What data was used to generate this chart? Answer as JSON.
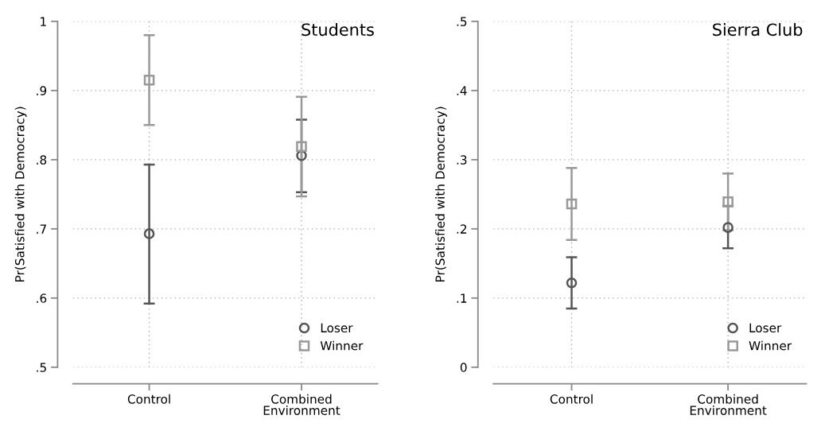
{
  "chart_data": [
    {
      "type": "scatter",
      "title": "Students",
      "ylabel": "Pr(Satisfied with Democracy)",
      "categories": [
        "Control",
        "Combined\nEnvironment"
      ],
      "ylim": [
        0.5,
        1
      ],
      "yticks": [
        {
          "value": 0.5,
          "label": ".5"
        },
        {
          "value": 0.6,
          "label": ".6"
        },
        {
          "value": 0.7,
          "label": ".7"
        },
        {
          "value": 0.8,
          "label": ".8"
        },
        {
          "value": 0.9,
          "label": ".9"
        },
        1
      ],
      "grid": true,
      "legend": "bottom right",
      "series": [
        {
          "name": "Loser",
          "color": "#555555",
          "marker": "circle",
          "values": [
            0.693,
            0.806
          ],
          "errors": [
            [
              0.592,
              0.793
            ],
            [
              0.753,
              0.858
            ]
          ]
        },
        {
          "name": "Winner",
          "color": "#999999",
          "marker": "square",
          "values": [
            0.915,
            0.819
          ],
          "errors": [
            [
              0.85,
              0.98
            ],
            [
              0.747,
              0.891
            ]
          ]
        }
      ]
    },
    {
      "type": "scatter",
      "title": "Sierra Club",
      "ylabel": "Pr(Satisfied with Democracy)",
      "categories": [
        "Control",
        "Combined\nEnvironment"
      ],
      "ylim": [
        0,
        0.5
      ],
      "yticks": [
        0,
        {
          "value": 0.1,
          "label": ".1"
        },
        {
          "value": 0.2,
          "label": ".2"
        },
        {
          "value": 0.3,
          "label": ".3"
        },
        {
          "value": 0.4,
          "label": ".4"
        },
        {
          "value": 0.5,
          "label": ".5"
        }
      ],
      "grid": true,
      "legend": "bottom right",
      "series": [
        {
          "name": "Loser",
          "color": "#555555",
          "marker": "circle",
          "values": [
            0.122,
            0.202
          ],
          "errors": [
            [
              0.085,
              0.159
            ],
            [
              0.172,
              0.233
            ]
          ]
        },
        {
          "name": "Winner",
          "color": "#999999",
          "marker": "square",
          "values": [
            0.236,
            0.239
          ],
          "errors": [
            [
              0.184,
              0.288
            ],
            [
              0.198,
              0.28
            ]
          ]
        }
      ]
    }
  ]
}
